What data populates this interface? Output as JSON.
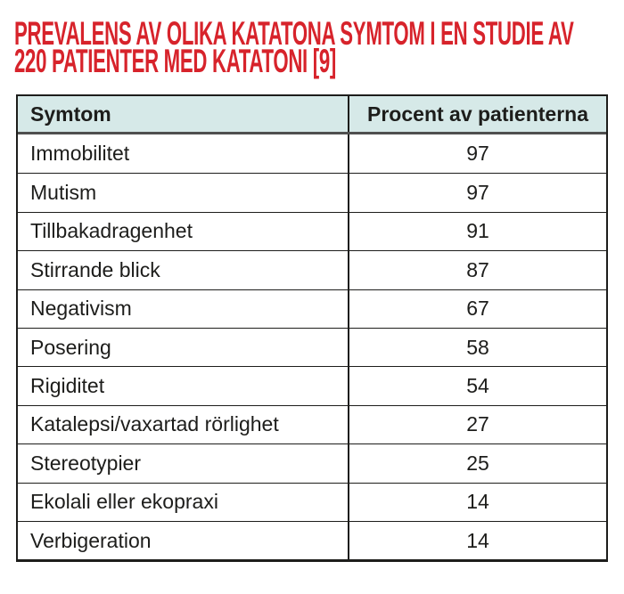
{
  "title": {
    "line1": "PREVALENS AV OLIKA KATATONA SYMTOM I EN STUDIE AV",
    "line2": "220 PATIENTER MED KATATONI [9]"
  },
  "colors": {
    "title_red": "#d7232b",
    "header_bg": "#d6e9e8",
    "border_dark": "#1d1d1b",
    "header_rule_gray": "#4f4f4f",
    "text": "#1d1d1b"
  },
  "chart_data": {
    "type": "table",
    "title": "PREVALENS AV OLIKA KATATONA SYMTOM I EN STUDIE AV 220 PATIENTER MED KATATONI [9]",
    "columns": [
      "Symtom",
      "Procent av patienterna"
    ],
    "categories": [
      "Immobilitet",
      "Mutism",
      "Tillbakadragenhet",
      "Stirrande blick",
      "Negativism",
      "Posering",
      "Rigiditet",
      "Katalepsi/vaxartad rörlighet",
      "Stereotypier",
      "Ekolali eller ekopraxi",
      "Verbigeration"
    ],
    "values": [
      97,
      97,
      91,
      87,
      67,
      58,
      54,
      27,
      25,
      14,
      14
    ]
  }
}
